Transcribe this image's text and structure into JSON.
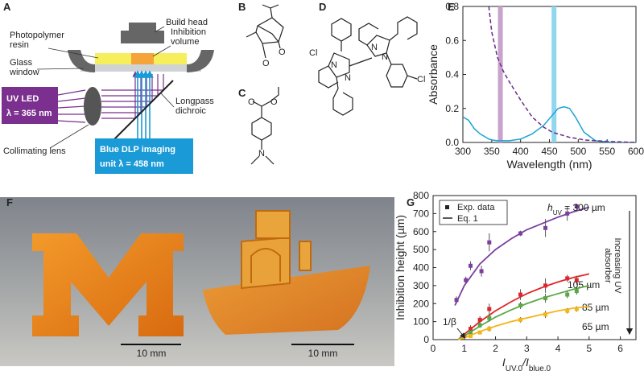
{
  "panel_labels": [
    "A",
    "B",
    "C",
    "D",
    "E",
    "F",
    "G"
  ],
  "panel_a": {
    "build_head": "Build head",
    "resin": [
      "Photopolymer",
      "resin"
    ],
    "inhibition": [
      "Inhibition",
      "volume"
    ],
    "glass": [
      "Glass",
      "window"
    ],
    "uv_led": [
      "UV LED",
      "λ = 365 nm"
    ],
    "dichroic": [
      "Longpass",
      "dichroic"
    ],
    "lens": "Collimating lens",
    "dlp": [
      "Blue DLP imaging",
      "unit λ = 458 nm"
    ]
  },
  "structures": {
    "b_atoms": [
      "O",
      "O"
    ],
    "c_atoms": [
      "O",
      "O",
      "N"
    ],
    "d_atoms": [
      "Cl",
      "N",
      "N",
      "N",
      "N",
      "Cl"
    ]
  },
  "panel_f": {
    "scale_bars": [
      "10 mm",
      "10 mm"
    ]
  },
  "chart_data": [
    {
      "type": "line",
      "xlabel": "Wavelength (nm)",
      "ylabel": "Absorbance",
      "x": [
        300,
        310,
        320,
        330,
        340,
        345,
        350,
        360,
        370,
        380,
        400,
        420,
        440,
        455,
        465,
        475,
        485,
        495,
        510,
        530,
        560,
        600
      ],
      "xlim": [
        300,
        600
      ],
      "xticks": [
        300,
        350,
        400,
        450,
        500,
        550,
        600
      ],
      "ylim": [
        0,
        0.8
      ],
      "yticks": [
        {
          "value": 0,
          "label": "0.0"
        },
        0.2,
        0.4,
        0.6,
        0.8
      ],
      "bands": [
        {
          "value": 365,
          "color": "#c8a3cc"
        },
        {
          "value": 458,
          "color": "#8fd6ee"
        }
      ],
      "series": [
        {
          "color": "#1ba3d6",
          "style": "solid",
          "values": [
            0.15,
            0.13,
            0.08,
            0.05,
            0.03,
            0.02,
            0.015,
            0.01,
            0.01,
            0.01,
            0.02,
            0.05,
            0.1,
            0.16,
            0.2,
            0.21,
            0.2,
            0.15,
            0.06,
            0.01,
            0,
            0
          ]
        },
        {
          "color": "#6a2a86",
          "style": "dashed",
          "values": [
            null,
            null,
            null,
            null,
            null,
            0.8,
            0.65,
            0.5,
            0.42,
            0.36,
            0.25,
            0.15,
            0.09,
            0.06,
            0.05,
            0.04,
            0.03,
            0.025,
            0.015,
            0.01,
            0.005,
            0
          ]
        }
      ]
    },
    {
      "type": "scatter",
      "xlabel": [
        "I",
        "UV,0",
        "/I",
        "blue,0"
      ],
      "ylabel": "Inhibition height (µm)",
      "xlim": [
        0,
        6.5
      ],
      "xticks": [
        0,
        1,
        2,
        3,
        4,
        5,
        6
      ],
      "ylim": [
        0,
        800
      ],
      "yticks": [
        0,
        100,
        200,
        300,
        400,
        500,
        600,
        700,
        800
      ],
      "legend": [
        "Exp. data",
        "Eq. 1"
      ],
      "legend_corner": "upper left",
      "annotation": "1/β",
      "arrow_label": [
        "Increasing UV",
        "absorber"
      ],
      "label_symbol": [
        "h",
        "UV"
      ],
      "series": [
        {
          "label": " = 300 µm",
          "color": "#7b3fa0",
          "x": [
            0.75,
            1.05,
            1.2,
            1.55,
            1.8,
            2.8,
            3.6,
            4.3,
            4.6
          ],
          "values": [
            220,
            330,
            410,
            380,
            540,
            590,
            620,
            700,
            740
          ],
          "errors": [
            20,
            20,
            25,
            30,
            50,
            15,
            50,
            40,
            15
          ],
          "fit_x": [
            0.7,
            1,
            1.5,
            2,
            2.5,
            3,
            3.5,
            4,
            4.5,
            5
          ],
          "fit_values": [
            190,
            300,
            420,
            500,
            560,
            610,
            645,
            680,
            710,
            735
          ]
        },
        {
          "label": "105 µm",
          "color": "#e0262a",
          "x": [
            1.0,
            1.2,
            1.5,
            1.8,
            2.8,
            3.6,
            4.3,
            4.6
          ],
          "values": [
            20,
            60,
            110,
            170,
            250,
            300,
            340,
            330
          ],
          "errors": [
            15,
            20,
            20,
            30,
            30,
            40,
            20,
            25
          ],
          "fit_x": [
            0.8,
            1,
            1.5,
            2,
            2.5,
            3,
            3.5,
            4,
            4.5,
            5
          ],
          "fit_values": [
            0,
            30,
            100,
            160,
            210,
            255,
            290,
            320,
            345,
            365
          ]
        },
        {
          "label": "85 µm",
          "color": "#5aa845",
          "x": [
            1.2,
            1.5,
            1.8,
            2.8,
            3.6,
            4.3,
            4.6
          ],
          "values": [
            40,
            80,
            120,
            190,
            230,
            250,
            270
          ],
          "errors": [
            15,
            15,
            20,
            20,
            25,
            20,
            20
          ],
          "fit_x": [
            0.8,
            1,
            1.5,
            2,
            2.5,
            3,
            3.5,
            4,
            4.5,
            5
          ],
          "fit_values": [
            0,
            20,
            75,
            125,
            165,
            200,
            230,
            255,
            280,
            300
          ]
        },
        {
          "label": "65 µm",
          "color": "#f2b51a",
          "x": [
            1.2,
            1.5,
            1.8,
            2.8,
            3.6,
            4.3,
            4.6
          ],
          "values": [
            20,
            40,
            60,
            110,
            140,
            160,
            170
          ],
          "errors": [
            10,
            10,
            15,
            15,
            20,
            15,
            15
          ],
          "fit_x": [
            0.8,
            1,
            1.5,
            2,
            2.5,
            3,
            3.5,
            4,
            4.5,
            5
          ],
          "fit_values": [
            0,
            10,
            45,
            75,
            100,
            120,
            140,
            160,
            175,
            185
          ]
        }
      ]
    }
  ]
}
